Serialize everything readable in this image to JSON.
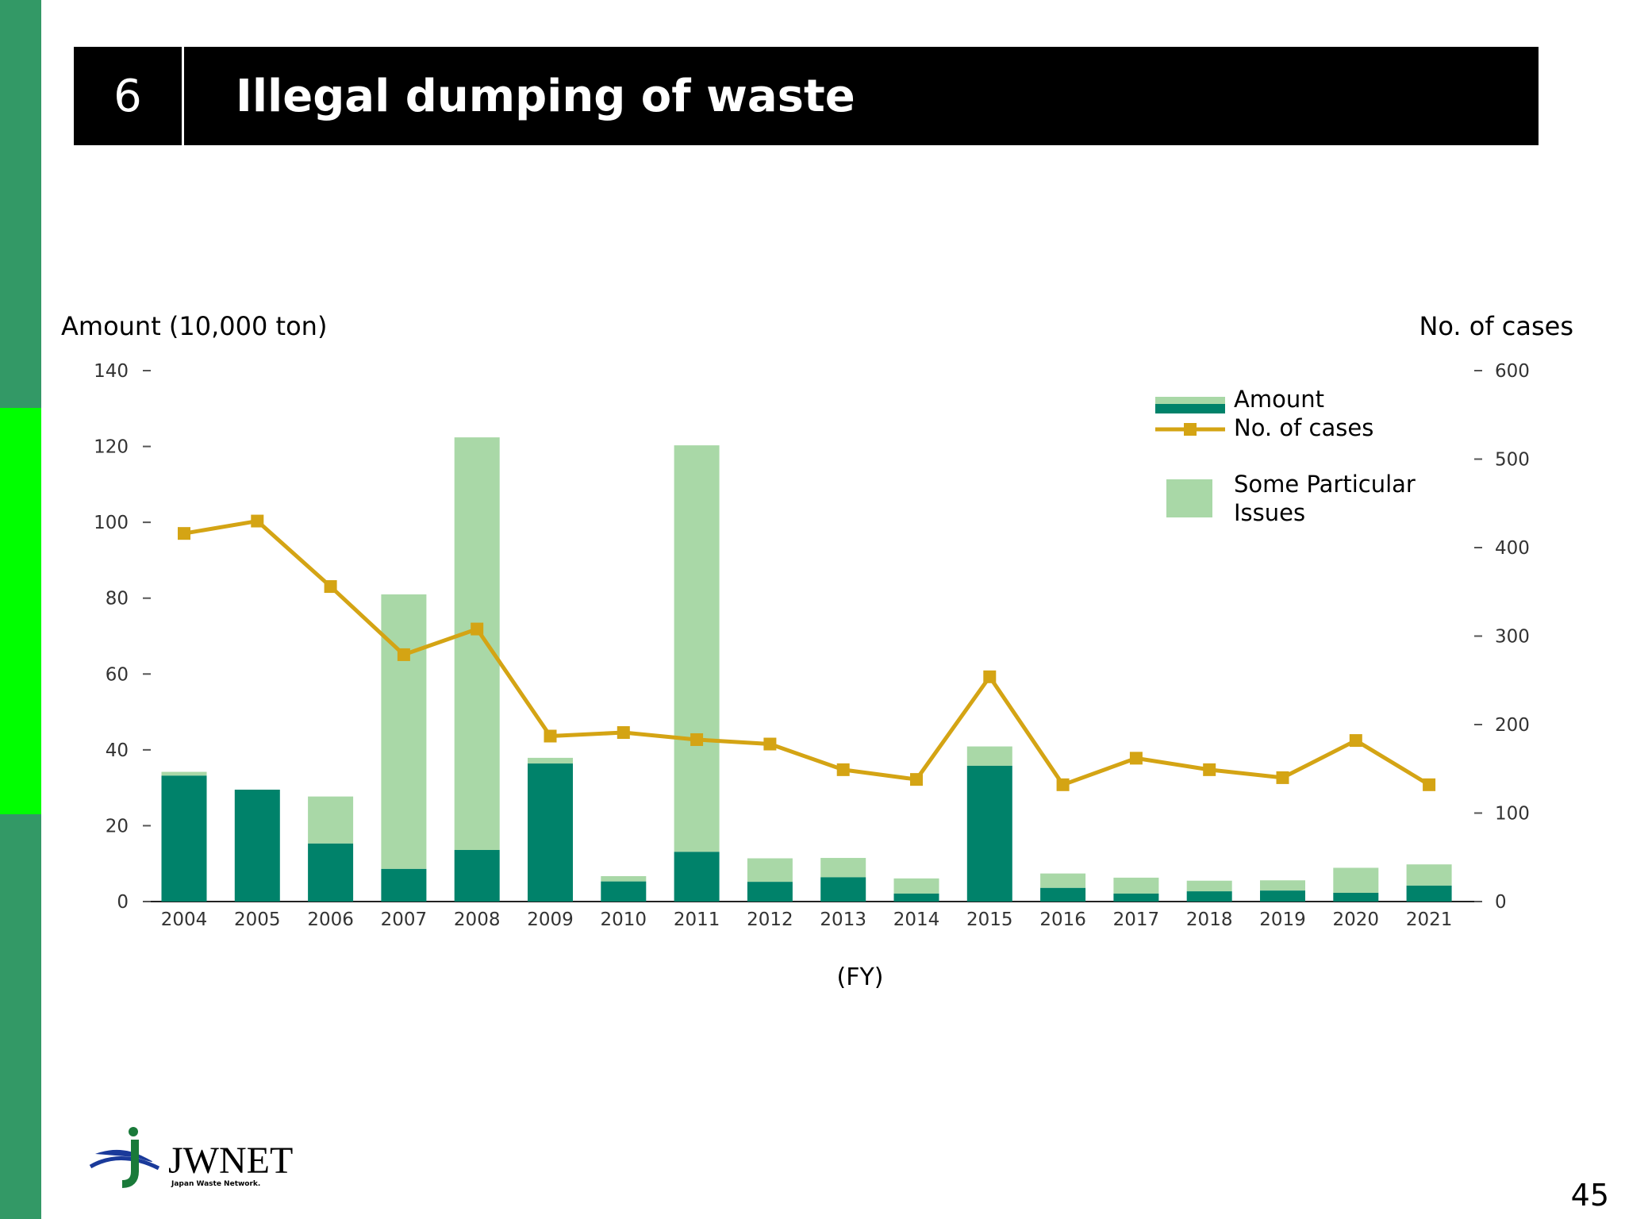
{
  "slide": {
    "number": "6",
    "title": "Illegal dumping of waste",
    "page": "45",
    "logo_text": "JWNET",
    "logo_subtext": "Japan Waste Network."
  },
  "colors": {
    "sidebar": "#339966",
    "sidebar_highlight": "#00ff00",
    "amount": "#00826a",
    "particular": "#a9d8a7",
    "cases": "#d4a414"
  },
  "chart_data": {
    "type": "bar",
    "ylabel_left": "Amount (10,000 ton)",
    "ylabel_right": "No. of cases",
    "xlabel": "(FY)",
    "categories": [
      "2004",
      "2005",
      "2006",
      "2007",
      "2008",
      "2009",
      "2010",
      "2011",
      "2012",
      "2013",
      "2014",
      "2015",
      "2016",
      "2017",
      "2018",
      "2019",
      "2020",
      "2021"
    ],
    "ylim_left": [
      0,
      140
    ],
    "yticks_left": [
      0,
      20,
      40,
      60,
      80,
      100,
      120,
      140
    ],
    "ylim_right": [
      0,
      600
    ],
    "yticks_right": [
      0,
      100,
      200,
      300,
      400,
      500,
      600
    ],
    "stacked": true,
    "series": [
      {
        "name": "Amount",
        "kind": "bar",
        "axis": "left",
        "values": [
          33.2,
          29.5,
          15.3,
          8.6,
          13.6,
          36.4,
          5.3,
          13.1,
          5.2,
          6.4,
          2.1,
          35.8,
          3.6,
          2.1,
          2.7,
          2.9,
          2.3,
          4.2
        ]
      },
      {
        "name": "Some Particular Issues",
        "kind": "bar",
        "axis": "left",
        "values": [
          1.0,
          0.0,
          12.4,
          72.4,
          108.8,
          1.5,
          1.4,
          107.2,
          6.2,
          5.1,
          4.0,
          5.1,
          3.8,
          4.2,
          2.8,
          2.7,
          6.6,
          5.6
        ]
      },
      {
        "name": "No. of cases",
        "kind": "line",
        "axis": "right",
        "values": [
          416,
          430,
          356,
          279,
          308,
          187,
          191,
          183,
          178,
          149,
          138,
          254,
          132,
          162,
          149,
          140,
          182,
          132
        ]
      }
    ],
    "legend": {
      "amount_label": "Amount",
      "cases_label": "No. of cases",
      "particular_label_line1": "Some Particular",
      "particular_label_line2": "Issues",
      "position": "top-right"
    }
  }
}
